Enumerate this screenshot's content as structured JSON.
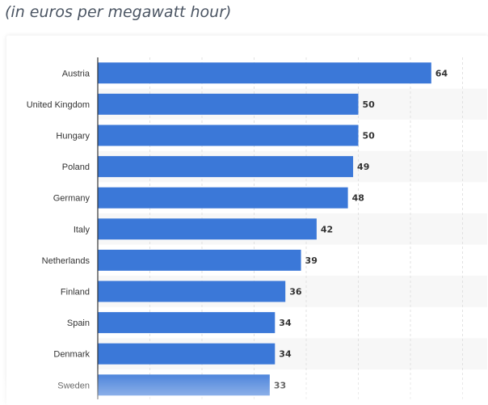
{
  "subtitle": "(in euros per megawatt hour)",
  "colors": {
    "bar": "#3b78d8",
    "stripe": "#f7f7f7",
    "grid": "#e1e1e1",
    "axis": "#333333",
    "text": "#333333"
  },
  "chart_data": {
    "type": "bar",
    "orientation": "horizontal",
    "title": "",
    "xlabel": "",
    "ylabel": "",
    "categories": [
      "Austria",
      "United Kingdom",
      "Hungary",
      "Poland",
      "Germany",
      "Italy",
      "Netherlands",
      "Finland",
      "Spain",
      "Denmark",
      "Sweden"
    ],
    "values": [
      64,
      50,
      50,
      49,
      48,
      42,
      39,
      36,
      34,
      34,
      33
    ],
    "xlim": [
      0,
      70
    ],
    "grid": true,
    "legend": "none"
  }
}
